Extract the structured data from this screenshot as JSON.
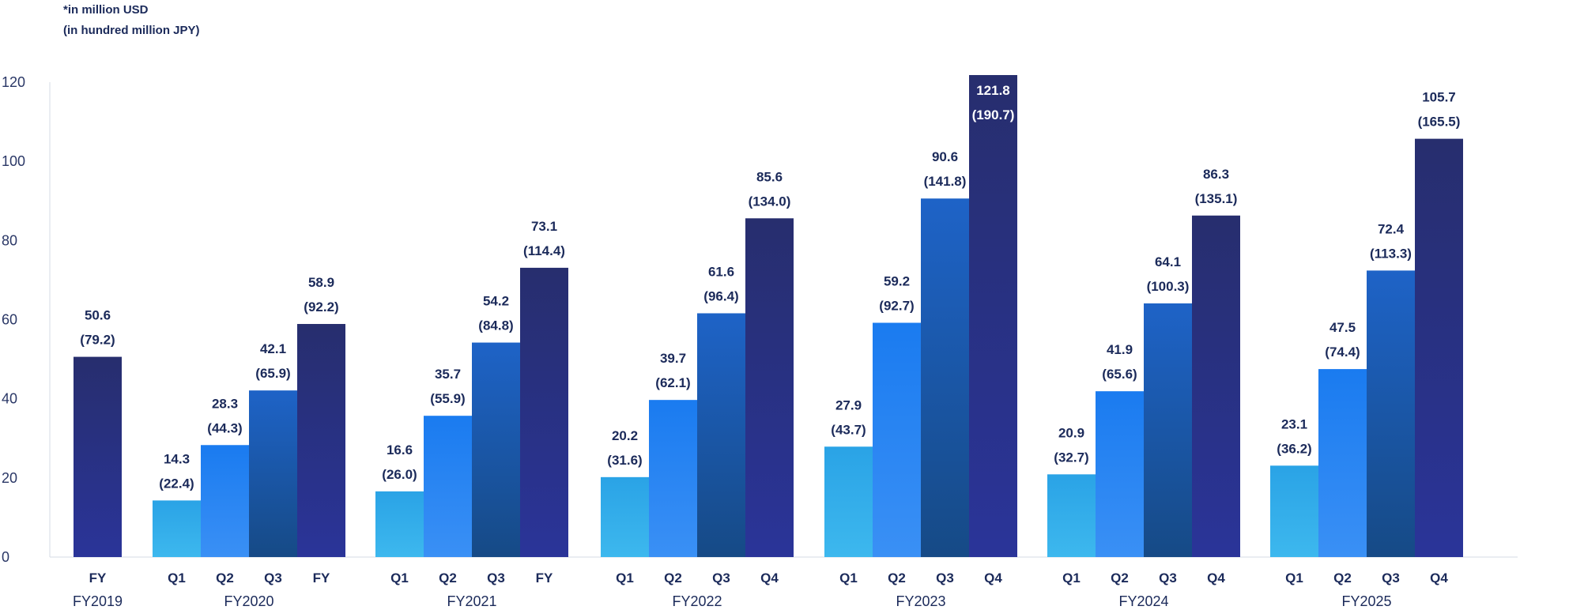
{
  "notes": {
    "usd": "*in million USD",
    "jpy": "(in hundred million JPY)"
  },
  "colors": {
    "q1_top": "#2aa3e6",
    "q1_bottom": "#3db8ee",
    "q2_top": "#1a7bf0",
    "q2_bottom": "#3a90f5",
    "q3_top": "#1e63c7",
    "q3_bottom": "#164a86",
    "q4_top": "#272e6e",
    "q4_bottom": "#2a3499",
    "axis": "#d6dbe6"
  },
  "chart_data": {
    "type": "bar",
    "title": "",
    "xlabel": "",
    "ylabel": "",
    "ylim": [
      0,
      120
    ],
    "yticks": [
      "0",
      "20",
      "40",
      "60",
      "80",
      "100",
      "120"
    ],
    "grid": false,
    "groups": [
      {
        "label": "FY2019",
        "bars": [
          {
            "label": "FY",
            "kind": "q4",
            "value": 50.6,
            "value_text": "50.6",
            "jpy_text": "(79.2)"
          }
        ]
      },
      {
        "label": "FY2020",
        "bars": [
          {
            "label": "Q1",
            "kind": "q1",
            "value": 14.3,
            "value_text": "14.3",
            "jpy_text": "(22.4)"
          },
          {
            "label": "Q2",
            "kind": "q2",
            "value": 28.3,
            "value_text": "28.3",
            "jpy_text": "(44.3)"
          },
          {
            "label": "Q3",
            "kind": "q3",
            "value": 42.1,
            "value_text": "42.1",
            "jpy_text": "(65.9)"
          },
          {
            "label": "FY",
            "kind": "q4",
            "value": 58.9,
            "value_text": "58.9",
            "jpy_text": "(92.2)"
          }
        ]
      },
      {
        "label": "FY2021",
        "bars": [
          {
            "label": "Q1",
            "kind": "q1",
            "value": 16.6,
            "value_text": "16.6",
            "jpy_text": "(26.0)"
          },
          {
            "label": "Q2",
            "kind": "q2",
            "value": 35.7,
            "value_text": "35.7",
            "jpy_text": "(55.9)"
          },
          {
            "label": "Q3",
            "kind": "q3",
            "value": 54.2,
            "value_text": "54.2",
            "jpy_text": "(84.8)"
          },
          {
            "label": "FY",
            "kind": "q4",
            "value": 73.1,
            "value_text": "73.1",
            "jpy_text": "(114.4)"
          }
        ]
      },
      {
        "label": "FY2022",
        "bars": [
          {
            "label": "Q1",
            "kind": "q1",
            "value": 20.2,
            "value_text": "20.2",
            "jpy_text": "(31.6)"
          },
          {
            "label": "Q2",
            "kind": "q2",
            "value": 39.7,
            "value_text": "39.7",
            "jpy_text": "(62.1)"
          },
          {
            "label": "Q3",
            "kind": "q3",
            "value": 61.6,
            "value_text": "61.6",
            "jpy_text": "(96.4)"
          },
          {
            "label": "Q4",
            "kind": "q4",
            "value": 85.6,
            "value_text": "85.6",
            "jpy_text": "(134.0)"
          }
        ]
      },
      {
        "label": "FY2023",
        "bars": [
          {
            "label": "Q1",
            "kind": "q1",
            "value": 27.9,
            "value_text": "27.9",
            "jpy_text": "(43.7)"
          },
          {
            "label": "Q2",
            "kind": "q2",
            "value": 59.2,
            "value_text": "59.2",
            "jpy_text": "(92.7)"
          },
          {
            "label": "Q3",
            "kind": "q3",
            "value": 90.6,
            "value_text": "90.6",
            "jpy_text": "(141.8)"
          },
          {
            "label": "Q4",
            "kind": "q4",
            "value": 121.8,
            "value_text": "121.8",
            "jpy_text": "(190.7)",
            "label_inside": true
          }
        ]
      },
      {
        "label": "FY2024",
        "bars": [
          {
            "label": "Q1",
            "kind": "q1",
            "value": 20.9,
            "value_text": "20.9",
            "jpy_text": "(32.7)"
          },
          {
            "label": "Q2",
            "kind": "q2",
            "value": 41.9,
            "value_text": "41.9",
            "jpy_text": "(65.6)"
          },
          {
            "label": "Q3",
            "kind": "q3",
            "value": 64.1,
            "value_text": "64.1",
            "jpy_text": "(100.3)"
          },
          {
            "label": "Q4",
            "kind": "q4",
            "value": 86.3,
            "value_text": "86.3",
            "jpy_text": "(135.1)"
          }
        ]
      },
      {
        "label": "FY2025",
        "bars": [
          {
            "label": "Q1",
            "kind": "q1",
            "value": 23.1,
            "value_text": "23.1",
            "jpy_text": "(36.2)"
          },
          {
            "label": "Q2",
            "kind": "q2",
            "value": 47.5,
            "value_text": "47.5",
            "jpy_text": "(74.4)"
          },
          {
            "label": "Q3",
            "kind": "q3",
            "value": 72.4,
            "value_text": "72.4",
            "jpy_text": "(113.3)"
          },
          {
            "label": "Q4",
            "kind": "q4",
            "value": 105.7,
            "value_text": "105.7",
            "jpy_text": "(165.5)"
          }
        ]
      }
    ]
  }
}
